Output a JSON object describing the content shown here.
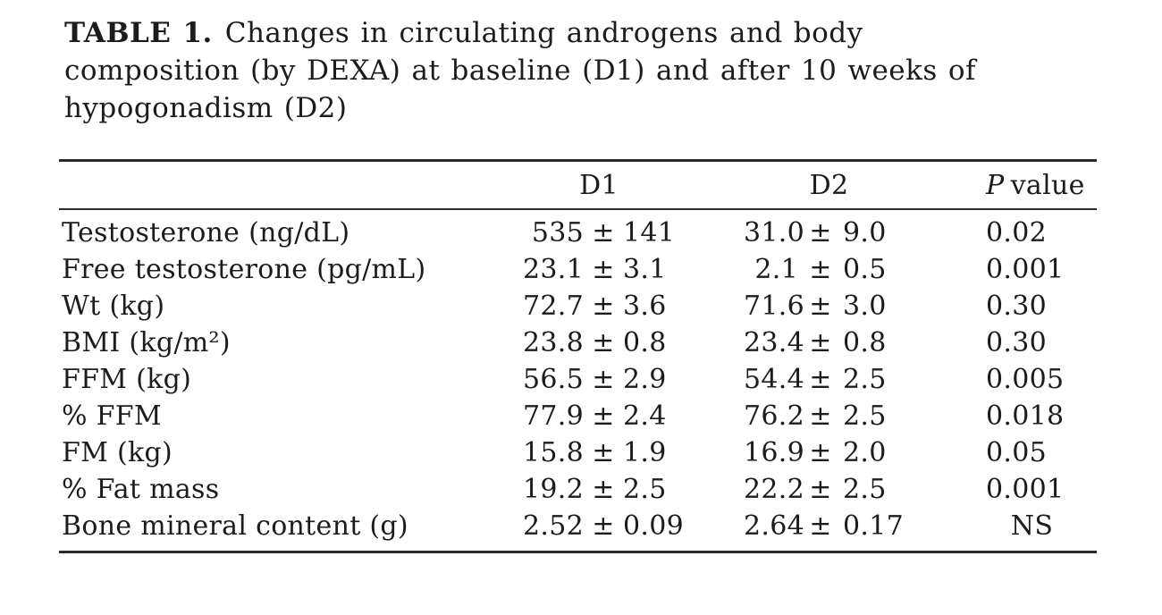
{
  "title": {
    "label": "TABLE 1.",
    "line1": "Changes in circulating androgens and body",
    "line2": "composition (by DEXA) at baseline (D1) and after 10 weeks of",
    "line3": "hypogonadism (D2)"
  },
  "symbols": {
    "pm": "±"
  },
  "table": {
    "headers": {
      "d1": "D1",
      "d2": "D2",
      "p_italic": "P",
      "p_rest": "value"
    },
    "rows": [
      {
        "label": "Testosterone (ng/dL)",
        "d1_mean": "535",
        "d1_sd": "141",
        "d2_mean": "31.0",
        "d2_sd": "9.0",
        "p": "0.02"
      },
      {
        "label": "Free testosterone (pg/mL)",
        "d1_mean": "23.1",
        "d1_sd": "3.1",
        "d2_mean": "2.1",
        "d2_sd": "0.5",
        "p": "0.001"
      },
      {
        "label": "Wt (kg)",
        "d1_mean": "72.7",
        "d1_sd": "3.6",
        "d2_mean": "71.6",
        "d2_sd": "3.0",
        "p": "0.30"
      },
      {
        "label": "BMI (kg/m²)",
        "d1_mean": "23.8",
        "d1_sd": "0.8",
        "d2_mean": "23.4",
        "d2_sd": "0.8",
        "p": "0.30"
      },
      {
        "label": "FFM (kg)",
        "d1_mean": "56.5",
        "d1_sd": "2.9",
        "d2_mean": "54.4",
        "d2_sd": "2.5",
        "p": "0.005"
      },
      {
        "label": "% FFM",
        "d1_mean": "77.9",
        "d1_sd": "2.4",
        "d2_mean": "76.2",
        "d2_sd": "2.5",
        "p": "0.018"
      },
      {
        "label": "FM (kg)",
        "d1_mean": "15.8",
        "d1_sd": "1.9",
        "d2_mean": "16.9",
        "d2_sd": "2.0",
        "p": "0.05"
      },
      {
        "label": "% Fat mass",
        "d1_mean": "19.2",
        "d1_sd": "2.5",
        "d2_mean": "22.2",
        "d2_sd": "2.5",
        "p": "0.001"
      },
      {
        "label": "Bone mineral content (g)",
        "d1_mean": "2.52",
        "d1_sd": "0.09",
        "d2_mean": "2.64",
        "d2_sd": "0.17",
        "p": "NS"
      }
    ]
  }
}
